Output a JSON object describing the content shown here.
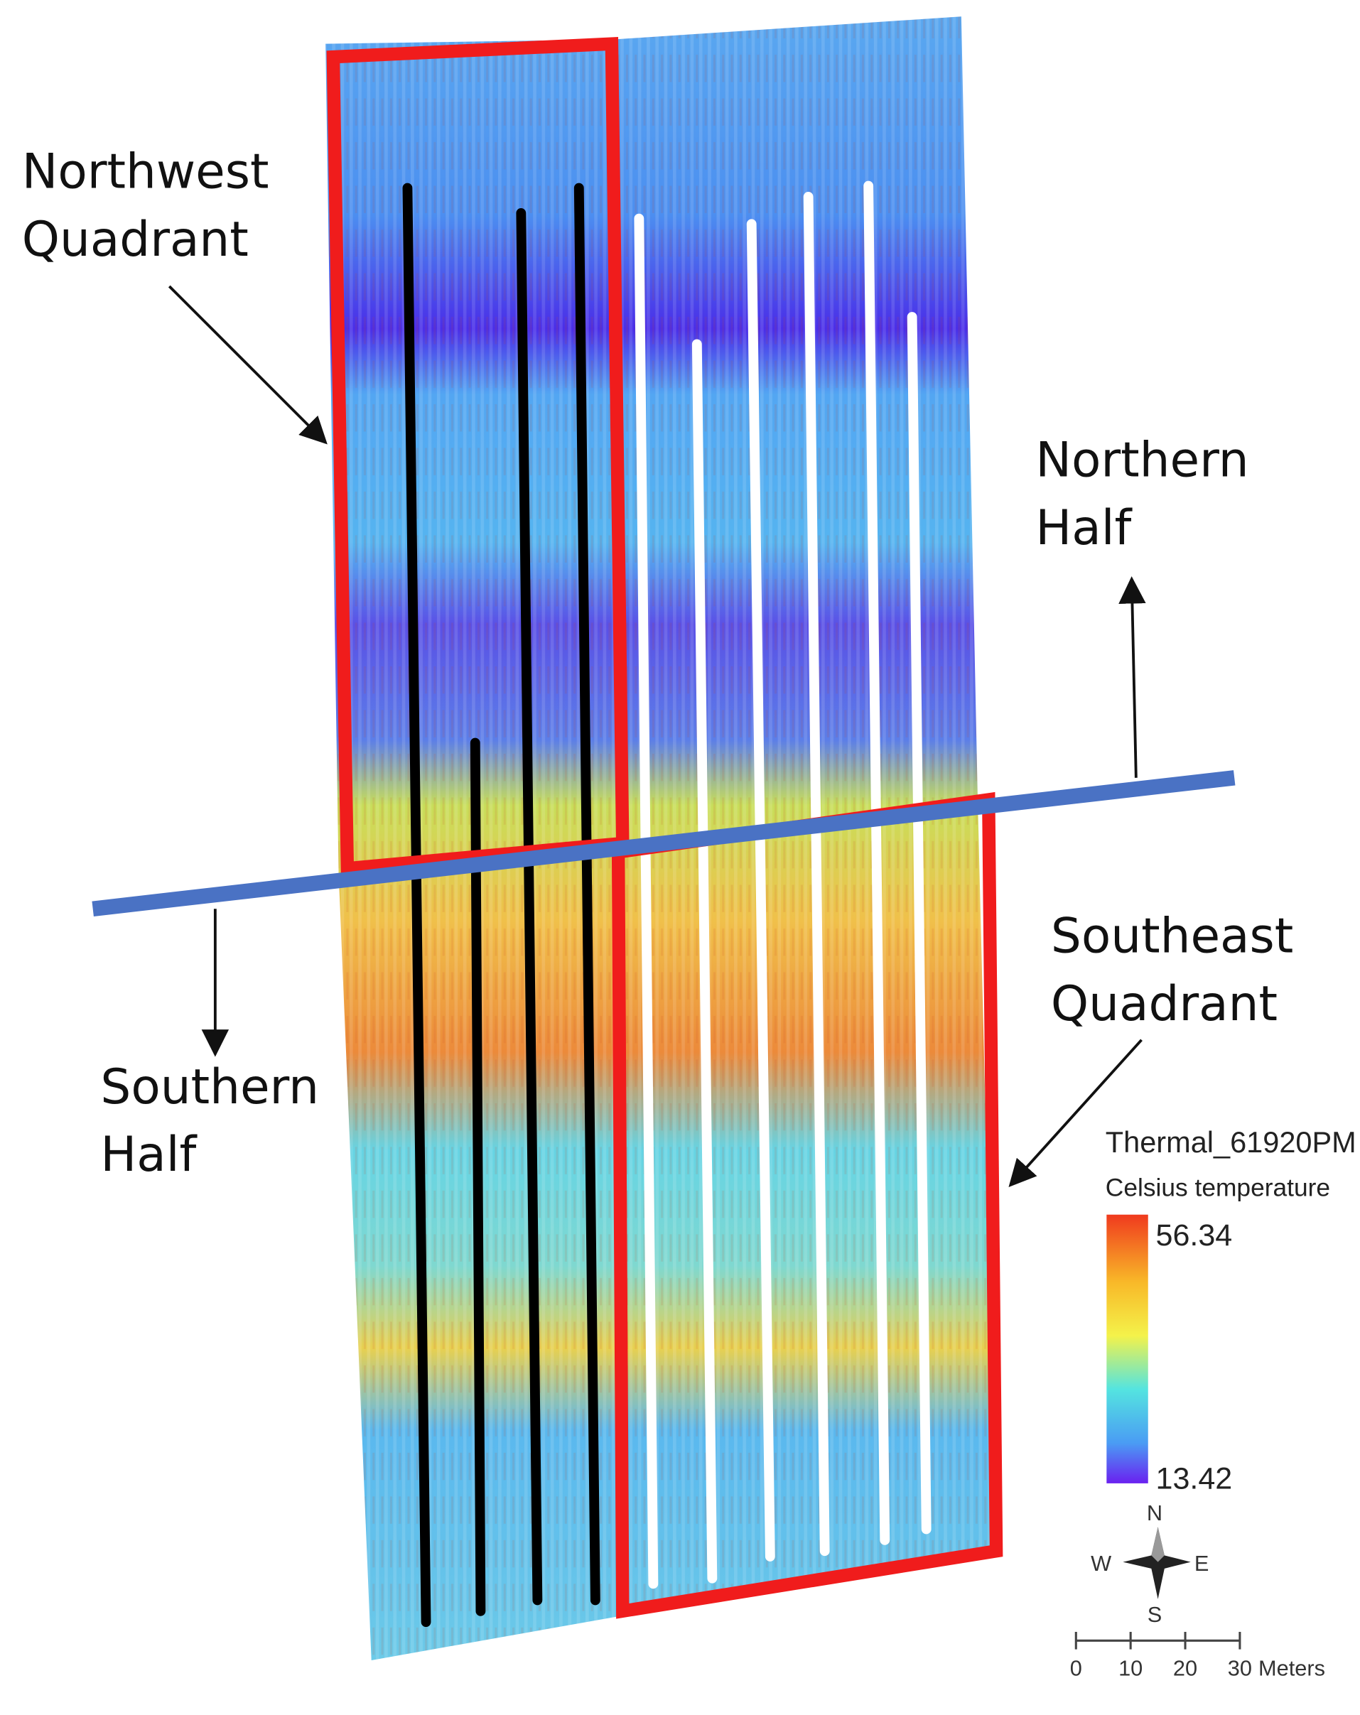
{
  "annotations": [
    {
      "lines": [
        "Northwest",
        "Quadrant"
      ]
    },
    {
      "lines": [
        "Northern",
        "Half"
      ]
    },
    {
      "lines": [
        "Southern",
        "Half"
      ]
    },
    {
      "lines": [
        "Southeast",
        "Quadrant"
      ]
    }
  ],
  "legend": {
    "title": "Thermal_61920PM",
    "subtitle": "Celsius temperature",
    "max": 56.34,
    "min": 13.42
  },
  "compass": {
    "n": "N",
    "s": "S",
    "e": "E",
    "w": "W"
  },
  "scale_bar": {
    "ticks": [
      0,
      10,
      20,
      30
    ],
    "unit": "Meters"
  }
}
